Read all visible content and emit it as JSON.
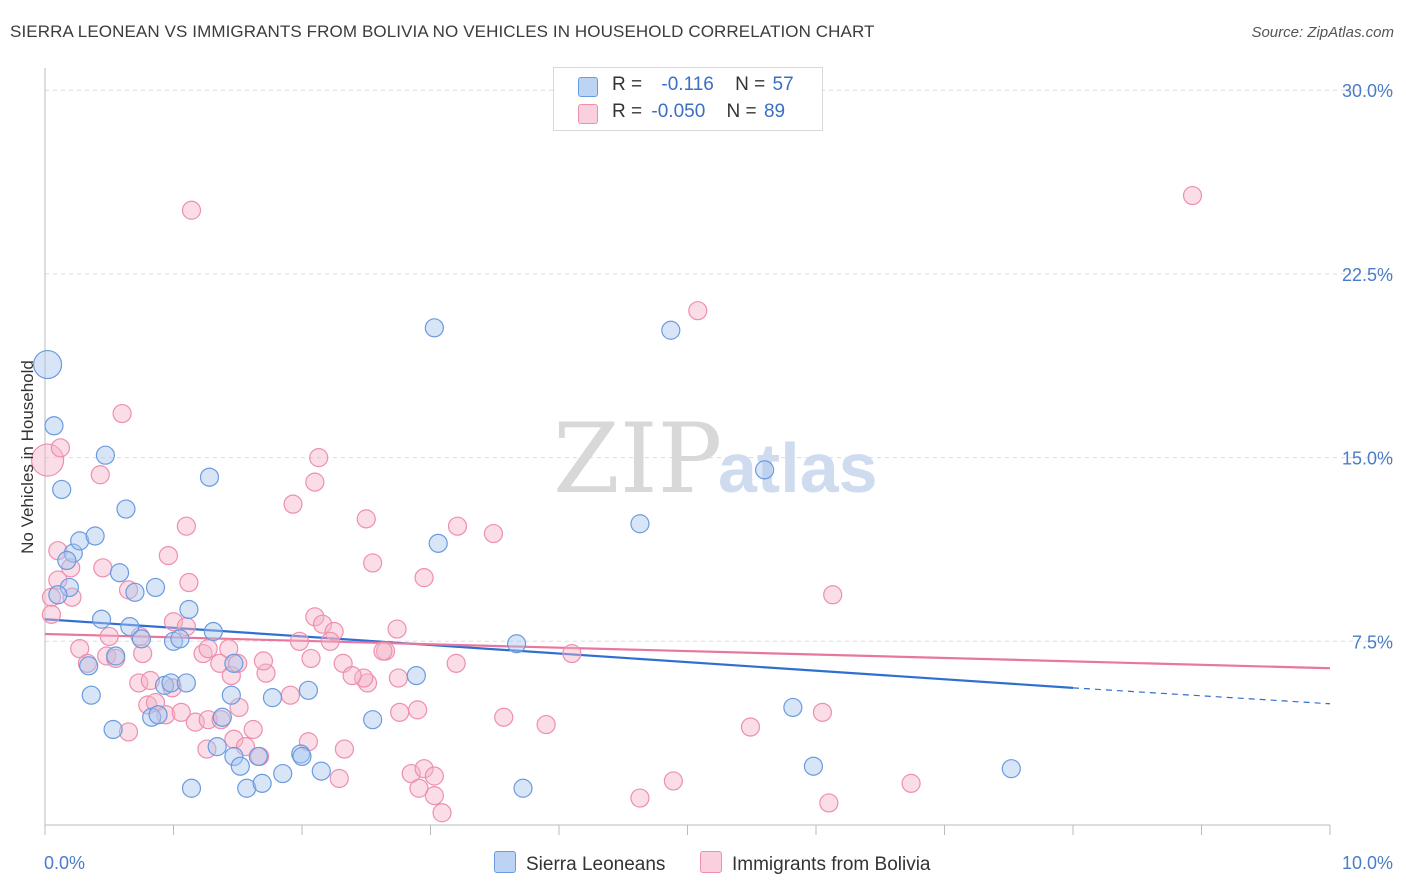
{
  "title": "SIERRA LEONEAN VS IMMIGRANTS FROM BOLIVIA NO VEHICLES IN HOUSEHOLD CORRELATION CHART",
  "source": "Source: ZipAtlas.com",
  "watermark": {
    "zip": "ZIP",
    "atlas": "atlas"
  },
  "legend": {
    "rows": [
      {
        "r_label": "R =",
        "r_value": "-0.116",
        "n_label": "N =",
        "n_value": "57",
        "color": "#a9c6ee"
      },
      {
        "r_label": "R =",
        "r_value": "-0.050",
        "n_label": "N =",
        "n_value": "89",
        "color": "#f5b4c8"
      }
    ]
  },
  "bottom_legend": [
    {
      "label": "Sierra Leoneans",
      "color": "#a9c6ee"
    },
    {
      "label": "Immigrants from Bolivia",
      "color": "#f5b4c8"
    }
  ],
  "chart_data": {
    "type": "scatter",
    "title": "SIERRA LEONEAN VS IMMIGRANTS FROM BOLIVIA NO VEHICLES IN HOUSEHOLD CORRELATION CHART",
    "xlabel": "",
    "ylabel": "No Vehicles in Household",
    "xlim": [
      0,
      10
    ],
    "ylim": [
      0,
      30.5
    ],
    "x_tick_labels": [
      "0.0%",
      "10.0%"
    ],
    "y_ticks": [
      7.5,
      15.0,
      22.5,
      30.0
    ],
    "y_tick_labels": [
      "7.5%",
      "15.0%",
      "22.5%",
      "30.0%"
    ],
    "grid": "horizontal dashed",
    "legend_position": "top-center",
    "series": [
      {
        "name": "Sierra Leoneans",
        "color": "#6a9be0",
        "fill": "#a9c6ee",
        "trend": {
          "x": [
            0,
            8.0
          ],
          "y": [
            8.4,
            5.6
          ],
          "dashed_to": [
            10.0,
            4.95
          ],
          "color": "#2f6fd1"
        },
        "points": [
          [
            0.02,
            18.8,
            14
          ],
          [
            0.07,
            16.3,
            9
          ],
          [
            0.13,
            13.7,
            9
          ],
          [
            0.47,
            15.1,
            9
          ],
          [
            0.63,
            12.9,
            9
          ],
          [
            0.22,
            11.1,
            9
          ],
          [
            0.27,
            11.6,
            9
          ],
          [
            0.39,
            11.8,
            9
          ],
          [
            0.17,
            10.8,
            9
          ],
          [
            0.58,
            10.3,
            9
          ],
          [
            0.19,
            9.7,
            9
          ],
          [
            0.1,
            9.4,
            9
          ],
          [
            0.7,
            9.5,
            9
          ],
          [
            0.86,
            9.7,
            9
          ],
          [
            1.12,
            8.8,
            9
          ],
          [
            0.44,
            8.4,
            9
          ],
          [
            0.66,
            8.1,
            9
          ],
          [
            0.75,
            7.6,
            9
          ],
          [
            1.0,
            7.5,
            9
          ],
          [
            1.05,
            7.6,
            9
          ],
          [
            1.31,
            7.9,
            9
          ],
          [
            1.47,
            6.6,
            9
          ],
          [
            0.55,
            6.9,
            9
          ],
          [
            0.34,
            6.5,
            9
          ],
          [
            0.93,
            5.7,
            9
          ],
          [
            0.98,
            5.8,
            9
          ],
          [
            1.1,
            5.8,
            9
          ],
          [
            0.36,
            5.3,
            9
          ],
          [
            1.45,
            5.3,
            9
          ],
          [
            1.77,
            5.2,
            9
          ],
          [
            2.05,
            5.5,
            9
          ],
          [
            0.53,
            3.9,
            9
          ],
          [
            0.83,
            4.4,
            9
          ],
          [
            0.88,
            4.5,
            9
          ],
          [
            1.38,
            4.4,
            9
          ],
          [
            1.34,
            3.2,
            9
          ],
          [
            1.47,
            2.8,
            9
          ],
          [
            1.66,
            2.8,
            9
          ],
          [
            1.99,
            2.9,
            9
          ],
          [
            2.15,
            2.2,
            9
          ],
          [
            1.52,
            2.4,
            9
          ],
          [
            1.14,
            1.5,
            9
          ],
          [
            1.57,
            1.5,
            9
          ],
          [
            1.69,
            1.7,
            9
          ],
          [
            1.85,
            2.1,
            9
          ],
          [
            2.0,
            2.8,
            9
          ],
          [
            1.28,
            14.2,
            9
          ],
          [
            2.55,
            4.3,
            9
          ],
          [
            2.89,
            6.1,
            9
          ],
          [
            3.03,
            20.3,
            9
          ],
          [
            3.06,
            11.5,
            9
          ],
          [
            3.67,
            7.4,
            9
          ],
          [
            3.72,
            1.5,
            9
          ],
          [
            4.63,
            12.3,
            9
          ],
          [
            4.87,
            20.2,
            9
          ],
          [
            5.6,
            14.5,
            9
          ],
          [
            5.82,
            4.8,
            9
          ],
          [
            5.98,
            2.4,
            9
          ],
          [
            7.52,
            2.3,
            9
          ]
        ]
      },
      {
        "name": "Immigrants from Bolivia",
        "color": "#ee8fae",
        "fill": "#f5b4c8",
        "trend": {
          "x": [
            0,
            10.0
          ],
          "y": [
            7.8,
            6.4
          ],
          "color": "#e8779f"
        },
        "points": [
          [
            0.02,
            14.9,
            16
          ],
          [
            0.12,
            15.4,
            9
          ],
          [
            0.43,
            14.3,
            9
          ],
          [
            0.6,
            16.8,
            9
          ],
          [
            0.1,
            11.2,
            9
          ],
          [
            0.2,
            10.5,
            9
          ],
          [
            0.45,
            10.5,
            9
          ],
          [
            0.1,
            10.0,
            9
          ],
          [
            0.05,
            9.3,
            9
          ],
          [
            0.21,
            9.3,
            9
          ],
          [
            0.05,
            8.6,
            9
          ],
          [
            0.65,
            9.6,
            9
          ],
          [
            0.96,
            11.0,
            9
          ],
          [
            1.1,
            12.2,
            9
          ],
          [
            1.12,
            9.9,
            9
          ],
          [
            0.5,
            7.7,
            9
          ],
          [
            0.74,
            7.7,
            9
          ],
          [
            1.0,
            8.3,
            9
          ],
          [
            1.1,
            8.1,
            9
          ],
          [
            0.27,
            7.2,
            9
          ],
          [
            0.33,
            6.6,
            9
          ],
          [
            0.48,
            6.9,
            9
          ],
          [
            0.55,
            6.8,
            9
          ],
          [
            0.76,
            7.0,
            9
          ],
          [
            1.23,
            7.0,
            9
          ],
          [
            1.27,
            7.2,
            9
          ],
          [
            1.36,
            6.6,
            9
          ],
          [
            1.45,
            6.1,
            9
          ],
          [
            0.73,
            5.8,
            9
          ],
          [
            0.82,
            5.9,
            9
          ],
          [
            0.99,
            5.6,
            9
          ],
          [
            0.8,
            4.9,
            9
          ],
          [
            0.86,
            5.0,
            9
          ],
          [
            0.94,
            4.5,
            9
          ],
          [
            1.06,
            4.6,
            9
          ],
          [
            1.17,
            4.2,
            9
          ],
          [
            1.27,
            4.3,
            9
          ],
          [
            1.37,
            4.3,
            9
          ],
          [
            1.51,
            4.8,
            9
          ],
          [
            1.62,
            3.9,
            9
          ],
          [
            0.65,
            3.8,
            9
          ],
          [
            1.26,
            3.1,
            9
          ],
          [
            1.47,
            3.5,
            9
          ],
          [
            1.56,
            3.2,
            9
          ],
          [
            1.5,
            6.6,
            9
          ],
          [
            1.72,
            6.2,
            9
          ],
          [
            1.91,
            5.3,
            9
          ],
          [
            1.67,
            2.8,
            9
          ],
          [
            1.43,
            7.2,
            9
          ],
          [
            1.7,
            6.7,
            9
          ],
          [
            1.14,
            25.1,
            9
          ],
          [
            1.93,
            13.1,
            9
          ],
          [
            2.1,
            8.5,
            9
          ],
          [
            2.16,
            8.2,
            9
          ],
          [
            2.25,
            7.9,
            9
          ],
          [
            1.98,
            7.5,
            9
          ],
          [
            2.22,
            7.5,
            9
          ],
          [
            2.07,
            6.8,
            9
          ],
          [
            2.32,
            6.6,
            9
          ],
          [
            2.51,
            5.8,
            9
          ],
          [
            2.48,
            6.0,
            9
          ],
          [
            2.39,
            6.1,
            9
          ],
          [
            2.05,
            3.4,
            9
          ],
          [
            2.33,
            3.1,
            9
          ],
          [
            2.29,
            1.9,
            9
          ],
          [
            2.1,
            14.0,
            9
          ],
          [
            2.13,
            15.0,
            9
          ],
          [
            2.5,
            12.5,
            9
          ],
          [
            2.55,
            10.7,
            9
          ],
          [
            2.65,
            7.1,
            9
          ],
          [
            2.74,
            8.0,
            9
          ],
          [
            2.63,
            7.1,
            9
          ],
          [
            2.75,
            6.0,
            9
          ],
          [
            2.95,
            10.1,
            9
          ],
          [
            2.9,
            4.7,
            9
          ],
          [
            2.76,
            4.6,
            9
          ],
          [
            2.85,
            2.1,
            9
          ],
          [
            2.95,
            2.3,
            9
          ],
          [
            3.03,
            2.0,
            9
          ],
          [
            3.09,
            0.5,
            9
          ],
          [
            3.03,
            1.2,
            9
          ],
          [
            2.91,
            1.5,
            9
          ],
          [
            3.21,
            12.2,
            9
          ],
          [
            3.2,
            6.6,
            9
          ],
          [
            3.49,
            11.9,
            9
          ],
          [
            3.57,
            4.4,
            9
          ],
          [
            3.9,
            4.1,
            9
          ],
          [
            4.1,
            7.0,
            9
          ],
          [
            4.63,
            1.1,
            9
          ],
          [
            4.89,
            1.8,
            9
          ],
          [
            5.08,
            21.0,
            9
          ],
          [
            5.49,
            4.0,
            9
          ],
          [
            6.05,
            4.6,
            9
          ],
          [
            6.13,
            9.4,
            9
          ],
          [
            6.1,
            0.9,
            9
          ],
          [
            6.74,
            1.7,
            9
          ],
          [
            8.93,
            25.7,
            9
          ]
        ]
      }
    ]
  }
}
